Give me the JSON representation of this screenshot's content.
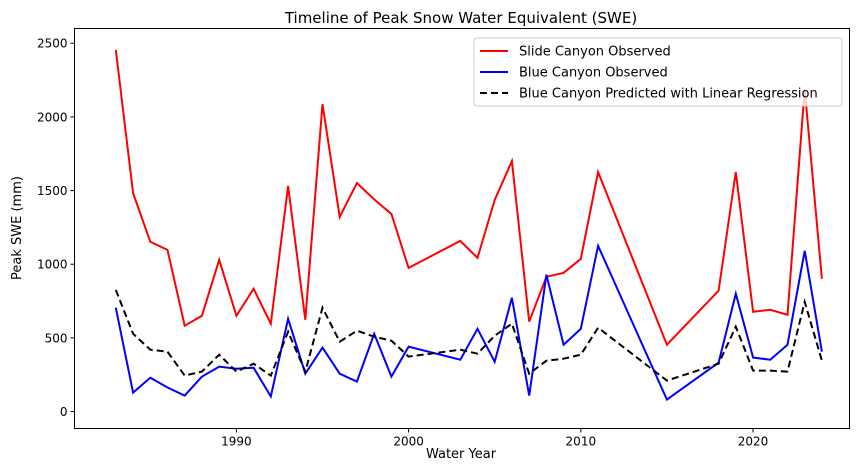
{
  "chart_data": {
    "type": "line",
    "title": "Timeline of Peak Snow Water Equivalent (SWE)",
    "xlabel": "Water Year",
    "ylabel": "Peak SWE (mm)",
    "xlim": [
      1980.6,
      2025.6
    ],
    "ylim": [
      -115,
      2600
    ],
    "xticks": [
      1990,
      2000,
      2010,
      2020
    ],
    "yticks": [
      0,
      500,
      1000,
      1500,
      2000,
      2500
    ],
    "grid": false,
    "legend_position": "top-right",
    "x": [
      1983,
      1984,
      1985,
      1986,
      1987,
      1988,
      1989,
      1990,
      1991,
      1992,
      1993,
      1994,
      1995,
      1996,
      1997,
      1998,
      1999,
      2000,
      2003,
      2004,
      2005,
      2006,
      2007,
      2008,
      2009,
      2010,
      2011,
      2015,
      2018,
      2019,
      2020,
      2021,
      2022,
      2023,
      2024
    ],
    "series": [
      {
        "name": "Slide Canyon Observed",
        "color": "#ff0000",
        "dash": false,
        "values": [
          2455,
          1483,
          1152,
          1097,
          583,
          650,
          1030,
          650,
          833,
          596,
          1531,
          623,
          2087,
          1321,
          1551,
          1440,
          1341,
          975,
          1158,
          1043,
          1436,
          1700,
          610,
          915,
          942,
          1036,
          1626,
          454,
          820,
          1626,
          677,
          691,
          657,
          2188,
          901
        ]
      },
      {
        "name": "Blue Canyon Observed",
        "color": "#0000ff",
        "dash": false,
        "values": [
          705,
          129,
          230,
          163,
          108,
          237,
          305,
          291,
          298,
          102,
          630,
          257,
          434,
          257,
          203,
          528,
          237,
          440,
          352,
          562,
          338,
          772,
          108,
          928,
          454,
          562,
          1125,
          81,
          332,
          800,
          366,
          352,
          454,
          1091,
          406
        ]
      },
      {
        "name": "Blue Canyon Predicted with Linear Regression",
        "color": "#000000",
        "dash": true,
        "values": [
          826,
          528,
          420,
          406,
          244,
          271,
          386,
          271,
          325,
          244,
          542,
          271,
          705,
          474,
          549,
          508,
          481,
          373,
          420,
          393,
          515,
          596,
          257,
          345,
          359,
          386,
          569,
          210,
          325,
          576,
          278,
          278,
          271,
          745,
          345
        ]
      }
    ]
  }
}
